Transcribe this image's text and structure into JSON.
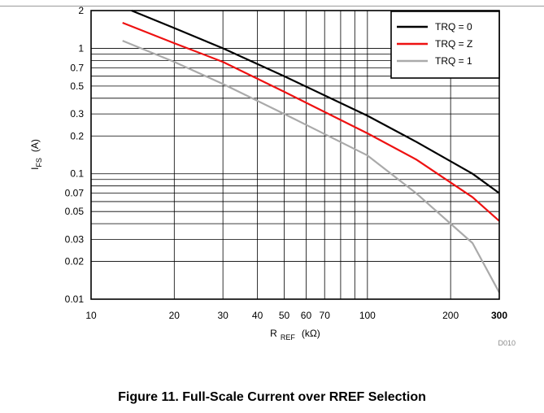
{
  "chart_data": {
    "type": "line",
    "xscale": "log",
    "yscale": "log",
    "xlim": [
      10,
      300
    ],
    "ylim": [
      0.01,
      2
    ],
    "grid": true,
    "legend_position": "top-right",
    "xlabel": {
      "main": "R",
      "sub": "REF",
      "unit": "(kΩ)"
    },
    "ylabel": {
      "main": "I",
      "sub": "FS",
      "unit": "(A)"
    },
    "x_ticks": [
      {
        "value": 10,
        "label": "10"
      },
      {
        "value": 20,
        "label": "20"
      },
      {
        "value": 30,
        "label": "30"
      },
      {
        "value": 40,
        "label": "40"
      },
      {
        "value": 50,
        "label": "50"
      },
      {
        "value": 60,
        "label": "60"
      },
      {
        "value": 70,
        "label": "70"
      },
      {
        "value": 100,
        "label": "100"
      },
      {
        "value": 200,
        "label": "200"
      },
      {
        "value": 300,
        "label": "300",
        "bold": true
      }
    ],
    "x_grid": [
      20,
      30,
      40,
      50,
      60,
      70,
      80,
      90,
      100,
      200
    ],
    "y_ticks": [
      {
        "value": 0.01,
        "label": "0.01"
      },
      {
        "value": 0.02,
        "label": "0.02"
      },
      {
        "value": 0.03,
        "label": "0.03"
      },
      {
        "value": 0.05,
        "label": "0.05"
      },
      {
        "value": 0.07,
        "label": "0.07"
      },
      {
        "value": 0.1,
        "label": "0.1"
      },
      {
        "value": 0.2,
        "label": "0.2"
      },
      {
        "value": 0.3,
        "label": "0.3"
      },
      {
        "value": 0.5,
        "label": "0.5"
      },
      {
        "value": 0.7,
        "label": "0.7"
      },
      {
        "value": 1,
        "label": "1"
      },
      {
        "value": 2,
        "label": "2"
      }
    ],
    "y_grid": [
      0.02,
      0.03,
      0.04,
      0.05,
      0.06,
      0.07,
      0.08,
      0.09,
      0.1,
      0.2,
      0.3,
      0.4,
      0.5,
      0.6,
      0.7,
      0.8,
      0.9,
      1
    ],
    "series": [
      {
        "name": "TRQ = 0",
        "color": "#000000",
        "x": [
          14,
          20,
          30,
          50,
          100,
          150,
          240,
          300
        ],
        "y": [
          2.0,
          1.45,
          1.0,
          0.6,
          0.29,
          0.18,
          0.1,
          0.07
        ]
      },
      {
        "name": "TRQ = Z",
        "color": "#ee1111",
        "x": [
          13,
          20,
          30,
          50,
          100,
          150,
          240,
          300
        ],
        "y": [
          1.6,
          1.1,
          0.78,
          0.45,
          0.21,
          0.13,
          0.065,
          0.042
        ]
      },
      {
        "name": "TRQ = 1",
        "color": "#aaaaaa",
        "x": [
          13,
          20,
          30,
          50,
          100,
          150,
          240,
          300
        ],
        "y": [
          1.15,
          0.78,
          0.52,
          0.3,
          0.14,
          0.07,
          0.028,
          0.0113
        ]
      }
    ]
  },
  "figure_id": "D010",
  "caption": "Figure 11. Full-Scale Current over RREF Selection"
}
